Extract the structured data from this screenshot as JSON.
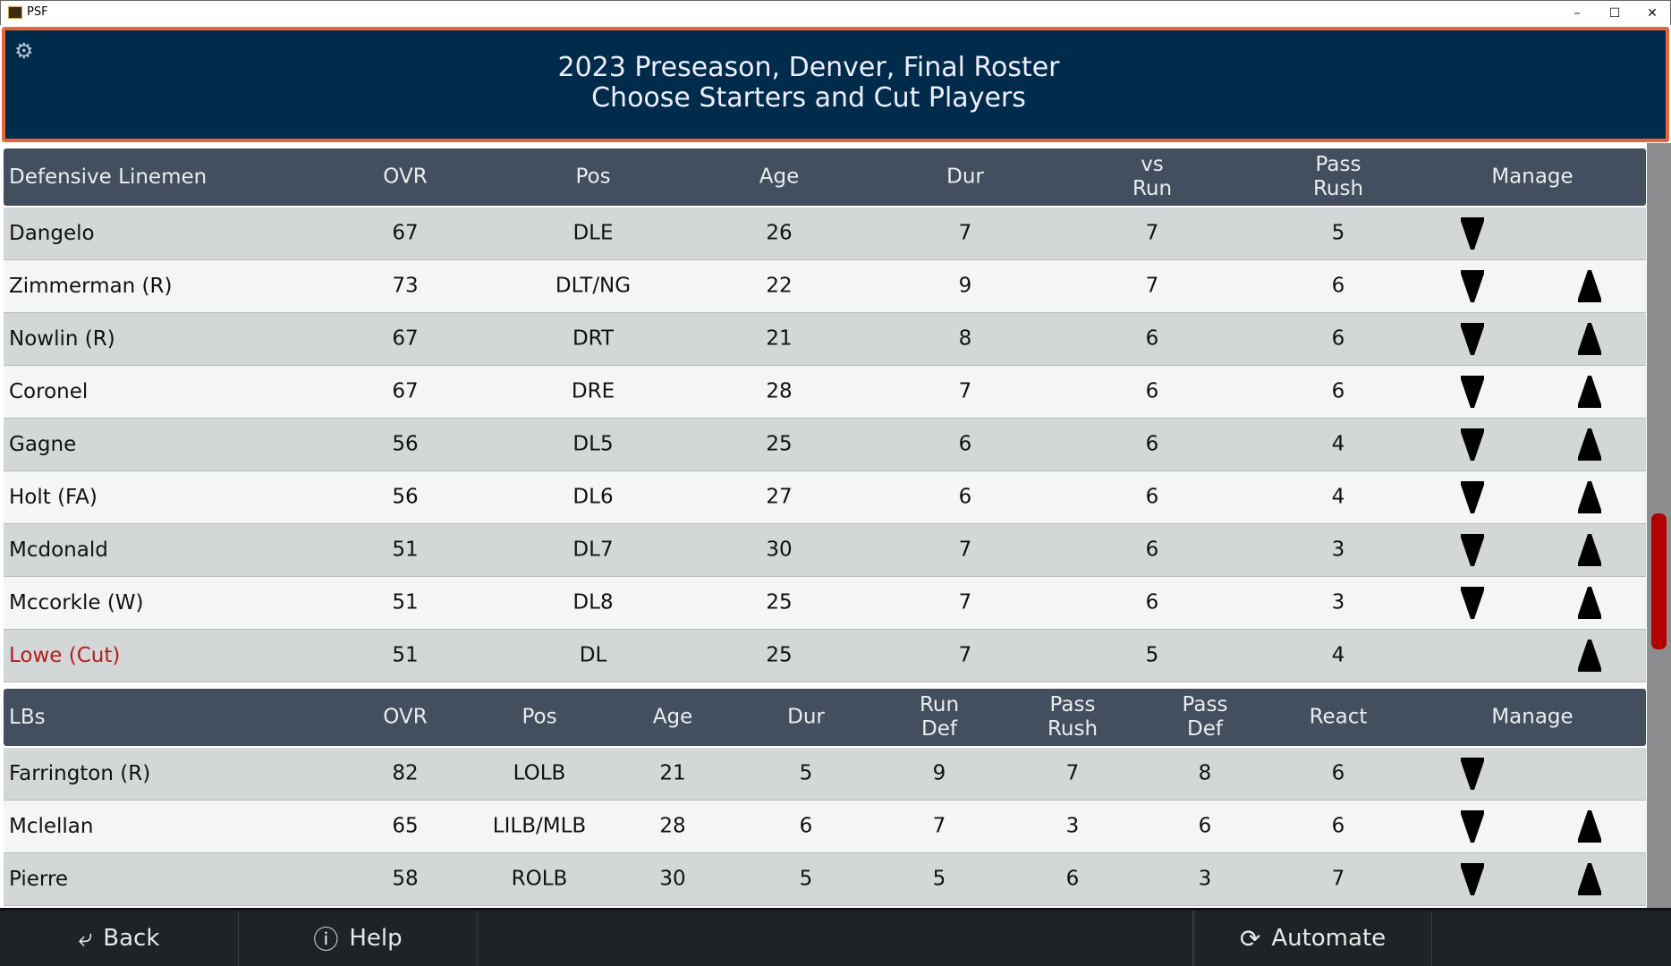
{
  "window": {
    "title": "PSF",
    "minimize": "–",
    "maximize": "☐",
    "close": "✕"
  },
  "header": {
    "line1": "2023 Preseason, Denver, Final Roster",
    "line2": "Choose Starters and Cut Players",
    "settings_icon": "gear-icon"
  },
  "dl_table": {
    "columns": [
      "Defensive Linemen",
      "OVR",
      "Pos",
      "Age",
      "Dur",
      "vs\nRun",
      "Pass\nRush",
      "Manage"
    ],
    "rows": [
      {
        "name": "Dangelo",
        "vals": [
          "67",
          "DLE",
          "26",
          "7",
          "7",
          "5"
        ],
        "down": true,
        "up": false,
        "cut": false
      },
      {
        "name": "Zimmerman (R)",
        "vals": [
          "73",
          "DLT/NG",
          "22",
          "9",
          "7",
          "6"
        ],
        "down": true,
        "up": true,
        "cut": false
      },
      {
        "name": "Nowlin (R)",
        "vals": [
          "67",
          "DRT",
          "21",
          "8",
          "6",
          "6"
        ],
        "down": true,
        "up": true,
        "cut": false
      },
      {
        "name": "Coronel",
        "vals": [
          "67",
          "DRE",
          "28",
          "7",
          "6",
          "6"
        ],
        "down": true,
        "up": true,
        "cut": false
      },
      {
        "name": "Gagne",
        "vals": [
          "56",
          "DL5",
          "25",
          "6",
          "6",
          "4"
        ],
        "down": true,
        "up": true,
        "cut": false
      },
      {
        "name": "Holt (FA)",
        "vals": [
          "56",
          "DL6",
          "27",
          "6",
          "6",
          "4"
        ],
        "down": true,
        "up": true,
        "cut": false
      },
      {
        "name": "Mcdonald",
        "vals": [
          "51",
          "DL7",
          "30",
          "7",
          "6",
          "3"
        ],
        "down": true,
        "up": true,
        "cut": false
      },
      {
        "name": "Mccorkle (W)",
        "vals": [
          "51",
          "DL8",
          "25",
          "7",
          "6",
          "3"
        ],
        "down": true,
        "up": true,
        "cut": false
      },
      {
        "name": "Lowe (Cut)",
        "vals": [
          "51",
          "DL",
          "25",
          "7",
          "5",
          "4"
        ],
        "down": false,
        "up": true,
        "cut": true
      }
    ]
  },
  "lb_table": {
    "columns": [
      "LBs",
      "OVR",
      "Pos",
      "Age",
      "Dur",
      "Run\nDef",
      "Pass\nRush",
      "Pass\nDef",
      "React",
      "Manage"
    ],
    "rows": [
      {
        "name": "Farrington (R)",
        "vals": [
          "82",
          "LOLB",
          "21",
          "5",
          "9",
          "7",
          "8",
          "6"
        ],
        "down": true,
        "up": false,
        "cut": false
      },
      {
        "name": "Mclellan",
        "vals": [
          "65",
          "LILB/MLB",
          "28",
          "6",
          "7",
          "3",
          "6",
          "6"
        ],
        "down": true,
        "up": true,
        "cut": false
      },
      {
        "name": "Pierre",
        "vals": [
          "58",
          "ROLB",
          "30",
          "5",
          "5",
          "6",
          "3",
          "7"
        ],
        "down": true,
        "up": true,
        "cut": false
      }
    ]
  },
  "footer": {
    "back": "Back",
    "help": "Help",
    "automate": "Automate"
  },
  "colors": {
    "accent": "#e8653a",
    "header_bg": "#002b4b",
    "cut": "#b81c1c",
    "scroll_thumb": "#b30000"
  }
}
